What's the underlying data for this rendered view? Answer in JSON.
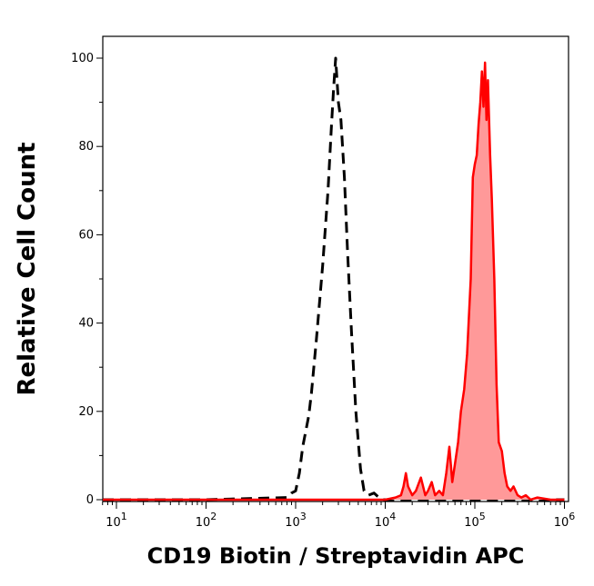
{
  "chart_data": {
    "type": "area",
    "title": "",
    "xlabel": "CD19 Biotin / Streptavidin APC",
    "ylabel": "Relative Cell Count",
    "x_scale": "log10",
    "xlim": [
      1,
      1000000
    ],
    "ylim": [
      0,
      105
    ],
    "grid": false,
    "legend": "none",
    "x_ticks": [
      {
        "value": 10,
        "base": "10",
        "exp": "1"
      },
      {
        "value": 100,
        "base": "10",
        "exp": "2"
      },
      {
        "value": 1000,
        "base": "10",
        "exp": "3"
      },
      {
        "value": 10000,
        "base": "10",
        "exp": "4"
      },
      {
        "value": 100000,
        "base": "10",
        "exp": "5"
      },
      {
        "value": 1000000,
        "base": "10",
        "exp": "6"
      }
    ],
    "y_ticks": [
      "0",
      "20",
      "40",
      "60",
      "80",
      "100"
    ],
    "series": [
      {
        "style": "dashed",
        "color": "#000000",
        "fill": "none",
        "x": [
          1,
          10,
          100,
          800,
          900,
          1000,
          1100,
          1200,
          1400,
          1500,
          1700,
          2000,
          2300,
          2500,
          2650,
          2800,
          3000,
          3200,
          3500,
          3800,
          4200,
          4700,
          5300,
          5800,
          6500,
          7500,
          8500,
          9500,
          12000,
          100000,
          1000000
        ],
        "y": [
          0,
          0,
          0,
          0.5,
          1.5,
          2,
          6,
          12,
          19,
          24,
          36,
          53,
          70,
          84,
          93,
          100,
          90,
          86,
          73,
          56,
          38,
          20,
          7,
          2,
          1,
          1.5,
          0.5,
          0,
          0,
          0,
          0
        ]
      },
      {
        "style": "solid",
        "color": "#ff0000",
        "fill": "#ff9999",
        "x": [
          1,
          10,
          100,
          1000,
          10000,
          13000,
          15000,
          16000,
          17000,
          18000,
          20000,
          22000,
          25000,
          28000,
          30000,
          33000,
          36000,
          40000,
          44000,
          48000,
          52000,
          56000,
          60000,
          65000,
          70000,
          76000,
          82000,
          90000,
          95000,
          100000,
          105000,
          110000,
          115000,
          120000,
          125000,
          130000,
          135000,
          140000,
          148000,
          155000,
          165000,
          175000,
          185000,
          200000,
          215000,
          230000,
          250000,
          270000,
          300000,
          330000,
          370000,
          420000,
          500000,
          700000,
          1000000
        ],
        "y": [
          0,
          0,
          0,
          0,
          0,
          0.5,
          1,
          3,
          6,
          3,
          1,
          2,
          5,
          1,
          2,
          4,
          1,
          2,
          1,
          6,
          12,
          4,
          8,
          13,
          20,
          25,
          33,
          50,
          73,
          76,
          78,
          85,
          90,
          97,
          89,
          99,
          86,
          95,
          78,
          68,
          50,
          26,
          13,
          11,
          6,
          3,
          2,
          3,
          1,
          0.5,
          1,
          0,
          0.5,
          0,
          0
        ]
      }
    ]
  }
}
